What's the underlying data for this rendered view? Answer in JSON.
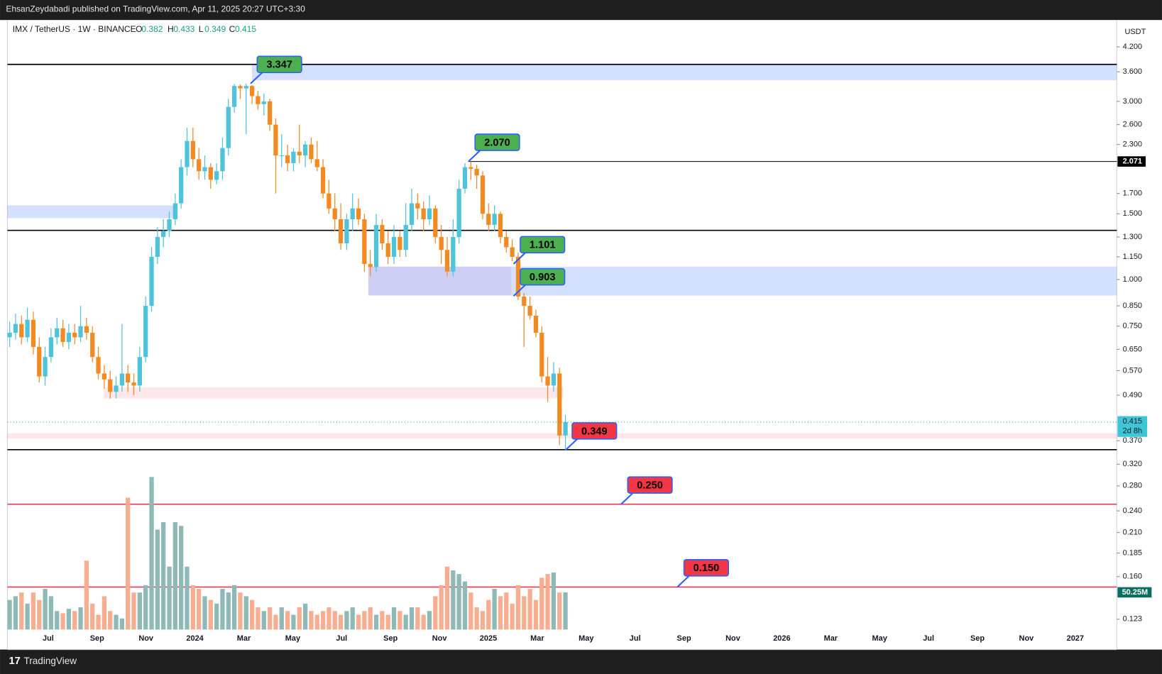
{
  "header": {
    "publisher_line": "EhsanZeydabadi published on TradingView.com, Apr 11, 2025 20:27 UTC+3:30",
    "brand": "TradingView"
  },
  "chart_data": {
    "type": "candlestick",
    "symbol": "IMX / TetherUS · 1W · BINANCE",
    "ohlc_keys": [
      "O",
      "H",
      "L",
      "C"
    ],
    "currency": "USDT",
    "countdown": "2d 8h",
    "log_scale": true,
    "ylim": [
      0.1154,
      4.957
    ],
    "yticks": [
      {
        "value": 4.2,
        "label": "4.200"
      },
      {
        "value": 3.6,
        "label": "3.600"
      },
      {
        "value": 3,
        "label": "3.000"
      },
      {
        "value": 2.6,
        "label": "2.600"
      },
      {
        "value": 2.3,
        "label": "2.300"
      },
      {
        "value": 1.7,
        "label": "1.700"
      },
      {
        "value": 1.5,
        "label": "1.500"
      },
      {
        "value": 1.3,
        "label": "1.300"
      },
      {
        "value": 1.15,
        "label": "1.150"
      },
      {
        "value": 1,
        "label": "1.000"
      },
      {
        "value": 0.85,
        "label": "0.850"
      },
      {
        "value": 0.75,
        "label": "0.750"
      },
      {
        "value": 0.65,
        "label": "0.650"
      },
      {
        "value": 0.57,
        "label": "0.570"
      },
      {
        "value": 0.49,
        "label": "0.490"
      },
      {
        "value": 0.37,
        "label": "0.370"
      },
      {
        "value": 0.32,
        "label": "0.320"
      },
      {
        "value": 0.28,
        "label": "0.280"
      },
      {
        "value": 0.24,
        "label": "0.240"
      },
      {
        "value": 0.21,
        "label": "0.210"
      },
      0.185,
      {
        "value": 0.16,
        "label": "0.160"
      },
      0.123
    ],
    "x_labels": [
      "Jul",
      "Sep",
      "Nov",
      "2024",
      "Mar",
      "May",
      "Jul",
      "Sep",
      "Nov",
      "2025",
      "Mar",
      "May",
      "Jul",
      "Sep",
      "Nov",
      "2026",
      "Mar",
      "May",
      "Jul",
      "Sep",
      "Nov",
      "2027"
    ],
    "up_color": "#4fc3d9",
    "down_color": "#f28a22",
    "volume_up_color": "#8fb9b7",
    "volume_down_color": "#f7ad90",
    "open": [
      0.7,
      0.72,
      0.76,
      0.7,
      0.78,
      0.66,
      0.55,
      0.62,
      0.7,
      0.74,
      0.68,
      0.72,
      0.7,
      0.75,
      0.72,
      0.62,
      0.56,
      0.54,
      0.5,
      0.52,
      0.56,
      0.53,
      0.52,
      0.62,
      0.85,
      1.15,
      1.3,
      1.35,
      1.45,
      1.6,
      2.0,
      2.35,
      2.1,
      1.95,
      2.0,
      1.85,
      1.95,
      2.25,
      2.9,
      3.3,
      3.25,
      3.3,
      3.1,
      2.95,
      3.0,
      2.6,
      2.15,
      2.15,
      2.05,
      2.2,
      2.15,
      2.3,
      2.1,
      2.0,
      1.7,
      1.55,
      1.45,
      1.25,
      1.45,
      1.55,
      1.45,
      1.1,
      1.08,
      1.4,
      1.25,
      1.15,
      1.3,
      1.2,
      1.4,
      1.6,
      1.55,
      1.45,
      1.55,
      1.3,
      1.2,
      1.05,
      1.3,
      1.75,
      2.0,
      1.98,
      1.9,
      1.5,
      1.4,
      1.5,
      1.3,
      1.22,
      1.15,
      0.9,
      0.85,
      0.8,
      0.72,
      0.55,
      0.52,
      0.56,
      0.382
    ],
    "high": [
      0.77,
      0.81,
      0.8,
      0.84,
      0.82,
      0.7,
      0.66,
      0.74,
      0.79,
      0.78,
      0.76,
      0.76,
      0.85,
      0.79,
      0.75,
      0.66,
      0.59,
      0.57,
      0.55,
      0.76,
      0.59,
      0.56,
      0.66,
      0.9,
      1.22,
      1.38,
      1.45,
      1.52,
      1.7,
      2.1,
      2.55,
      2.55,
      2.25,
      2.15,
      2.05,
      2.05,
      2.4,
      3.05,
      3.34,
      3.33,
      3.347,
      3.32,
      3.2,
      3.15,
      3.05,
      2.7,
      2.45,
      2.3,
      2.25,
      2.6,
      2.35,
      2.4,
      2.35,
      2.1,
      1.85,
      1.7,
      1.6,
      1.5,
      1.7,
      1.65,
      1.5,
      1.2,
      1.5,
      1.45,
      1.35,
      1.4,
      1.35,
      1.6,
      1.75,
      1.7,
      1.62,
      1.68,
      1.58,
      1.4,
      1.3,
      1.45,
      1.85,
      2.05,
      2.07,
      2.03,
      1.95,
      1.6,
      1.58,
      1.52,
      1.35,
      1.28,
      1.18,
      0.92,
      0.9,
      0.83,
      0.75,
      0.62,
      0.6,
      0.58,
      0.433
    ],
    "low": [
      0.66,
      0.69,
      0.67,
      0.68,
      0.63,
      0.53,
      0.52,
      0.6,
      0.67,
      0.66,
      0.65,
      0.67,
      0.68,
      0.69,
      0.6,
      0.54,
      0.51,
      0.48,
      0.48,
      0.5,
      0.5,
      0.49,
      0.5,
      0.6,
      0.82,
      1.1,
      1.22,
      1.3,
      1.4,
      1.55,
      1.9,
      2.0,
      1.85,
      1.85,
      1.75,
      1.8,
      1.85,
      2.15,
      2.8,
      3.05,
      2.45,
      2.95,
      2.85,
      2.75,
      2.5,
      1.7,
      2.0,
      1.95,
      1.95,
      2.05,
      2.0,
      2.05,
      1.95,
      1.65,
      1.5,
      1.35,
      1.2,
      1.2,
      1.35,
      1.4,
      1.05,
      1.02,
      1.05,
      1.2,
      1.1,
      1.1,
      1.15,
      1.15,
      1.35,
      1.45,
      1.35,
      1.4,
      1.25,
      1.1,
      1.02,
      1.02,
      1.25,
      1.7,
      1.85,
      1.75,
      1.45,
      1.35,
      1.35,
      1.25,
      1.18,
      1.12,
      0.88,
      0.66,
      0.78,
      0.7,
      0.53,
      0.47,
      0.5,
      0.36,
      0.349
    ],
    "close": [
      0.72,
      0.76,
      0.7,
      0.78,
      0.66,
      0.55,
      0.62,
      0.7,
      0.74,
      0.68,
      0.72,
      0.7,
      0.75,
      0.72,
      0.62,
      0.56,
      0.54,
      0.5,
      0.52,
      0.56,
      0.53,
      0.52,
      0.62,
      0.85,
      1.15,
      1.3,
      1.35,
      1.45,
      1.6,
      2.0,
      2.35,
      2.1,
      1.95,
      2.0,
      1.85,
      1.95,
      2.25,
      2.9,
      3.3,
      3.25,
      3.3,
      3.1,
      2.95,
      3.0,
      2.6,
      2.15,
      2.15,
      2.05,
      2.2,
      2.15,
      2.3,
      2.1,
      2.0,
      1.7,
      1.55,
      1.45,
      1.25,
      1.45,
      1.55,
      1.45,
      1.1,
      1.08,
      1.4,
      1.25,
      1.15,
      1.3,
      1.2,
      1.4,
      1.6,
      1.55,
      1.45,
      1.55,
      1.3,
      1.2,
      1.05,
      1.3,
      1.75,
      2.0,
      1.98,
      1.9,
      1.5,
      1.4,
      1.5,
      1.3,
      1.22,
      1.15,
      0.9,
      0.85,
      0.8,
      0.72,
      0.55,
      0.52,
      0.56,
      0.382,
      0.415
    ],
    "volume": {
      "values": [
        40,
        45,
        50,
        35,
        50,
        40,
        55,
        45,
        25,
        22,
        28,
        25,
        30,
        93,
        35,
        20,
        45,
        25,
        20,
        15,
        178,
        50,
        50,
        60,
        206,
        135,
        145,
        85,
        145,
        140,
        85,
        60,
        55,
        45,
        40,
        35,
        55,
        50,
        60,
        50,
        45,
        40,
        30,
        25,
        30,
        20,
        30,
        25,
        20,
        30,
        35,
        25,
        20,
        25,
        30,
        25,
        20,
        25,
        30,
        20,
        25,
        30,
        20,
        25,
        20,
        30,
        25,
        20,
        30,
        30,
        20,
        25,
        45,
        60,
        85,
        80,
        75,
        65,
        50,
        30,
        25,
        40,
        55,
        45,
        50,
        35,
        60,
        45,
        55,
        40,
        70,
        75,
        77,
        50,
        50.25
      ],
      "current_label": "50.25M"
    },
    "zones": [
      {
        "top": 3.77,
        "bottom": 3.42,
        "color": "#2962ff"
      },
      {
        "top": 1.58,
        "bottom": 1.46,
        "color": "#2962ff"
      },
      {
        "top": 1.083,
        "bottom": 0.906,
        "color": "#2962ff"
      },
      {
        "top": 0.514,
        "bottom": 0.48,
        "color": "#f7525f"
      },
      {
        "top": 0.387,
        "bottom": 0.375,
        "color": "#f7525f"
      }
    ],
    "levels": [
      {
        "value": 3.77,
        "color": "#000000"
      },
      {
        "value": 2.071,
        "color": "#000000"
      },
      {
        "value": 1.354,
        "color": "#000000"
      },
      {
        "value": 0.35,
        "color": "#000000"
      },
      {
        "value": 0.25,
        "color": "#e53950"
      },
      {
        "value": 0.15,
        "color": "#e53950"
      }
    ],
    "annotations": [
      {
        "value": 3.347,
        "color": "#4caf50"
      },
      {
        "value": 2.07,
        "label": "2.070",
        "color": "#4caf50"
      },
      {
        "value": 1.101,
        "color": "#4caf50"
      },
      {
        "value": 0.903,
        "color": "#4caf50"
      },
      {
        "value": 0.349,
        "color": "#f23645"
      },
      {
        "value": 0.25,
        "label": "0.250",
        "color": "#f23645"
      },
      {
        "value": 0.15,
        "label": "0.150",
        "color": "#f23645"
      }
    ]
  }
}
